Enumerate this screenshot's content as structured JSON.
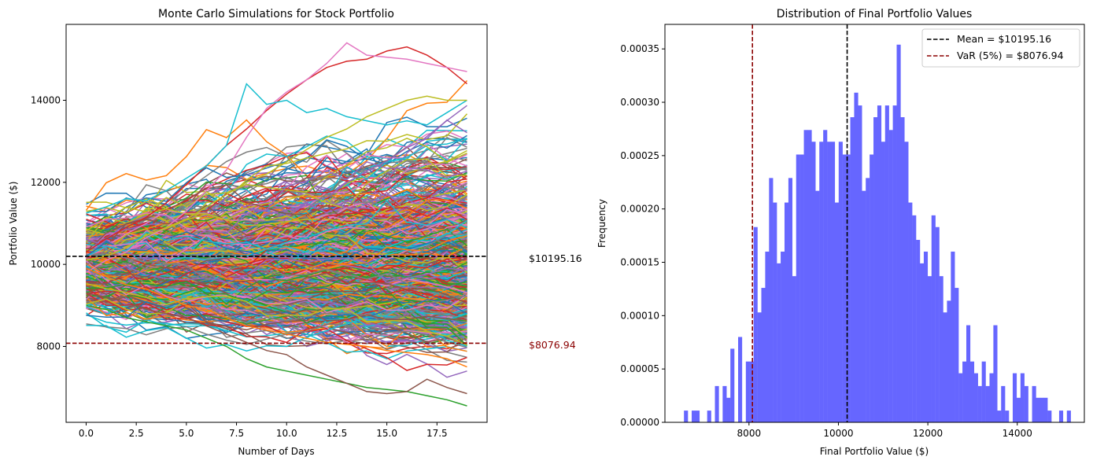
{
  "chart_data": [
    {
      "type": "line",
      "title": "Monte Carlo Simulations for Stock Portfolio",
      "xlabel": "Number of Days",
      "ylabel": "Portfolio Value ($)",
      "xlim": [
        -1,
        20
      ],
      "ylim": [
        6150,
        15850
      ],
      "xticks": [
        0.0,
        2.5,
        5.0,
        7.5,
        10.0,
        12.5,
        15.0,
        17.5
      ],
      "xtick_labels": [
        "0.0",
        "2.5",
        "5.0",
        "7.5",
        "10.0",
        "12.5",
        "15.0",
        "17.5"
      ],
      "yticks": [
        8000,
        10000,
        12000,
        14000
      ],
      "ytick_labels": [
        "8000",
        "10000",
        "12000",
        "14000"
      ],
      "days": 20,
      "start_value": 10000,
      "num_simulations_drawn": 1000,
      "hlines": [
        {
          "y": 10195.16,
          "color": "#000000",
          "style": "dashed",
          "label": "$10195.16"
        },
        {
          "y": 8076.94,
          "color": "#8b0000",
          "style": "dashed",
          "label": "$8076.94"
        }
      ],
      "sample_paths": [
        {
          "name": "",
          "values": [
            10300,
            10620,
            10900,
            11150,
            11500,
            11950,
            12400,
            12900,
            13300,
            13750,
            14150,
            14500,
            14800,
            14950,
            15000,
            15200,
            15300,
            15100,
            14800,
            14400
          ]
        },
        {
          "name": "",
          "values": [
            9800,
            10100,
            10300,
            10650,
            10900,
            11300,
            11800,
            12300,
            13100,
            13800,
            14200,
            14500,
            14900,
            15400,
            15100,
            15050,
            15000,
            14900,
            14800,
            14700
          ]
        },
        {
          "name": "",
          "values": [
            11250,
            11400,
            11600,
            11550,
            11800,
            12100,
            12400,
            12900,
            14400,
            13900,
            14000,
            13700,
            13800,
            13600,
            13500,
            13400,
            13500,
            13400,
            13700,
            14000
          ]
        },
        {
          "name": "",
          "values": [
            9000,
            8900,
            8700,
            8600,
            8500,
            8400,
            8200,
            8000,
            7700,
            7500,
            7400,
            7300,
            7200,
            7100,
            7000,
            6950,
            6900,
            6800,
            6700,
            6550
          ]
        },
        {
          "name": "",
          "values": [
            9300,
            9200,
            9100,
            8900,
            8800,
            8700,
            8500,
            8300,
            8100,
            7900,
            7800,
            7500,
            7300,
            7100,
            6900,
            6850,
            6900,
            7200,
            7000,
            6850
          ]
        },
        {
          "name": "",
          "values": [
            10100,
            10200,
            10400,
            10700,
            10900,
            11100,
            11400,
            11700,
            12000,
            12200,
            12500,
            12800,
            13100,
            13300,
            13600,
            13800,
            14000,
            14100,
            14000,
            14000
          ]
        },
        {
          "name": "",
          "values": [
            9900,
            9700,
            9500,
            9400,
            9200,
            9000,
            8900,
            8700,
            8500,
            8400,
            8300,
            8200,
            8100,
            8050,
            8000,
            7900,
            7850,
            7800,
            7700,
            7500
          ]
        }
      ],
      "series_colors": [
        "#1f77b4",
        "#ff7f0e",
        "#2ca02c",
        "#d62728",
        "#9467bd",
        "#8c564b",
        "#e377c2",
        "#7f7f7f",
        "#bcbd22",
        "#17becf"
      ],
      "grid": false
    },
    {
      "type": "bar",
      "title": "Distribution of Final Portfolio Values",
      "xlabel": "Final Portfolio Value ($)",
      "ylabel": "Frequency",
      "xlim": [
        6120,
        15500
      ],
      "ylim": [
        0,
        0.000373
      ],
      "xticks": [
        8000,
        10000,
        12000,
        14000
      ],
      "xtick_labels": [
        "8000",
        "10000",
        "12000",
        "14000"
      ],
      "yticks": [
        0.0,
        5e-05,
        0.0001,
        0.00015,
        0.0002,
        0.00025,
        0.0003,
        0.00035
      ],
      "ytick_labels": [
        "0.00000",
        "0.00005",
        "0.00010",
        "0.00015",
        "0.00020",
        "0.00025",
        "0.00030",
        "0.00035"
      ],
      "bin_start": 6545.7,
      "bin_width": 86.5,
      "density": [
        1.1e-05,
        0.0,
        1.1e-05,
        1.1e-05,
        0.0,
        0.0,
        1.1e-05,
        0.0,
        3.4e-05,
        0.0,
        3.4e-05,
        2.3e-05,
        6.9e-05,
        0.0,
        8e-05,
        0.0,
        5.7e-05,
        5.7e-05,
        0.000183,
        0.000103,
        0.000126,
        0.00016,
        0.000229,
        0.000206,
        0.000149,
        0.00016,
        0.000206,
        0.000229,
        0.000137,
        0.000251,
        0.000251,
        0.000274,
        0.000274,
        0.000263,
        0.000217,
        0.000263,
        0.000274,
        0.000263,
        0.000263,
        0.000206,
        0.000263,
        0.000251,
        0.000251,
        0.000286,
        0.000309,
        0.000297,
        0.000217,
        0.000229,
        0.000251,
        0.000286,
        0.000297,
        0.000263,
        0.000297,
        0.000274,
        0.000297,
        0.000354,
        0.000286,
        0.000263,
        0.000206,
        0.000194,
        0.000171,
        0.000149,
        0.00016,
        0.000137,
        0.000194,
        0.000183,
        0.000137,
        0.000103,
        0.000114,
        0.00016,
        0.000126,
        4.6e-05,
        5.7e-05,
        9.1e-05,
        5.7e-05,
        4.6e-05,
        3.4e-05,
        5.7e-05,
        3.4e-05,
        4.6e-05,
        9.1e-05,
        1.1e-05,
        3.4e-05,
        1.1e-05,
        0.0,
        4.6e-05,
        2.3e-05,
        4.6e-05,
        3.4e-05,
        0.0,
        3.4e-05,
        2.3e-05,
        2.3e-05,
        2.3e-05,
        1.1e-05,
        0.0,
        0.0,
        1.1e-05,
        0.0,
        1.1e-05
      ],
      "bar_color": "#6666ff",
      "vlines": [
        {
          "x": 10195.16,
          "color": "#000000",
          "style": "dashed"
        },
        {
          "x": 8076.94,
          "color": "#8b0000",
          "style": "dashed"
        }
      ],
      "legend": {
        "position": "top-right",
        "entries": [
          {
            "label": "Mean = $10195.16",
            "color": "#000000",
            "style": "dashed"
          },
          {
            "label": "VaR (5%) = $8076.94",
            "color": "#8b0000",
            "style": "dashed"
          }
        ]
      },
      "grid": false
    }
  ]
}
